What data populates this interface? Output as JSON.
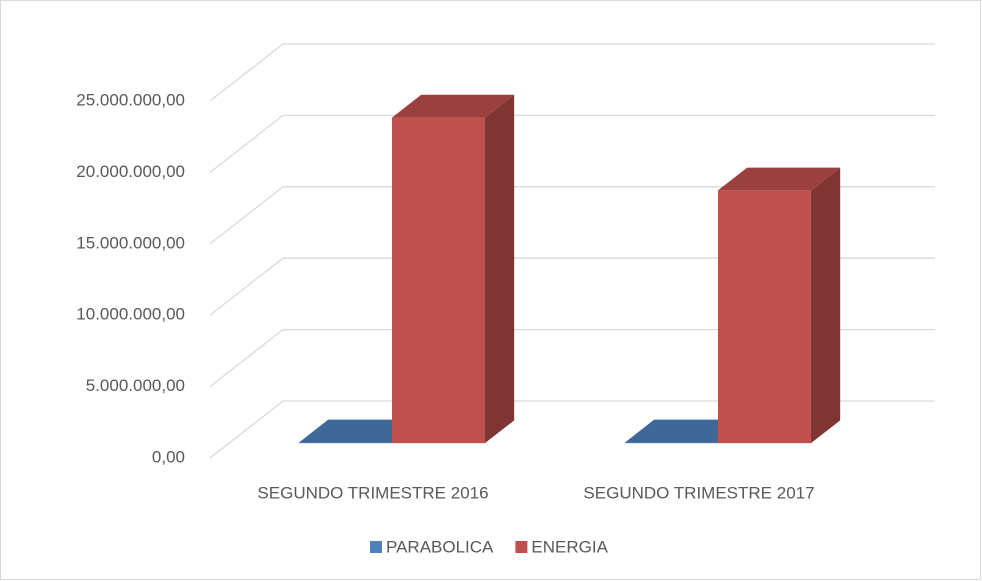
{
  "chart_data": {
    "type": "bar3d",
    "categories": [
      "SEGUNDO TRIMESTRE 2016",
      "SEGUNDO TRIMESTRE 2017"
    ],
    "series": [
      {
        "name": "PARABOLICA",
        "color": "#4f81bd",
        "values": [
          50000,
          50000
        ]
      },
      {
        "name": "ENERGIA",
        "color": "#c0504d",
        "values": [
          22800000,
          17700000
        ]
      }
    ],
    "ylim": [
      0,
      25000000
    ],
    "yticks": [
      {
        "value": 0,
        "label": "0,00"
      },
      {
        "value": 5000000,
        "label": "5.000.000,00"
      },
      {
        "value": 10000000,
        "label": "10.000.000,00"
      },
      {
        "value": 15000000,
        "label": "15.000.000,00"
      },
      {
        "value": 20000000,
        "label": "20.000.000,00"
      },
      {
        "value": 25000000,
        "label": "25.000.000,00"
      }
    ],
    "grid": true,
    "legend": "bottom"
  }
}
